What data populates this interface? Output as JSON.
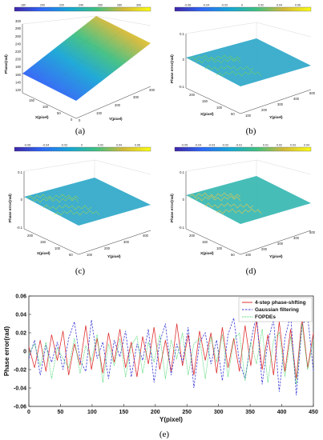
{
  "chart_data": [
    {
      "panel_label": "(a)",
      "type": "surface",
      "xlabel": "X(pixel)",
      "ylabel": "Y(pixel)",
      "zlabel": "Phase(rad)",
      "x_ticks": [
        "150",
        "100",
        "50",
        "0"
      ],
      "y_ticks": [
        "0",
        "100",
        "200",
        "300",
        "400"
      ],
      "z_ticks": [
        "120",
        "140",
        "160",
        "180",
        "200",
        "220",
        "240",
        "260",
        "280",
        "300"
      ],
      "zlim": [
        110,
        300
      ],
      "colorbar_ticks": [
        "180",
        "200",
        "220",
        "240",
        "260",
        "280",
        "300"
      ],
      "description": "smooth tilted phase plane rising from about 115 rad at Y=0 to about 300 rad at Y=400"
    },
    {
      "panel_label": "(b)",
      "type": "surface",
      "xlabel": "X(pixel)",
      "ylabel": "Y(pixel)",
      "zlabel": "Phase error(rad)",
      "x_ticks": [
        "200",
        "150",
        "100",
        "50"
      ],
      "y_ticks": [
        "100",
        "200",
        "300",
        "400",
        "500"
      ],
      "z_ticks": [
        "-0.1",
        "0",
        "0.1"
      ],
      "zlim": [
        -0.1,
        0.1
      ],
      "colorbar_ticks": [
        "-0.06",
        "-0.04",
        "-0.02",
        "0",
        "0.02",
        "0.04",
        "0.06"
      ]
    },
    {
      "panel_label": "(c)",
      "type": "surface",
      "xlabel": "X(pixel)",
      "ylabel": "Y(pixel)",
      "zlabel": "Phase error(rad)",
      "x_ticks": [
        "200",
        "150",
        "100",
        "50"
      ],
      "y_ticks": [
        "100",
        "200",
        "300",
        "400"
      ],
      "z_ticks": [
        "-0.1",
        "0",
        "0.1"
      ],
      "zlim": [
        -0.1,
        0.1
      ],
      "colorbar_ticks": [
        "-0.06",
        "-0.04",
        "-0.02",
        "0",
        "0.02",
        "0.04",
        "0.06"
      ]
    },
    {
      "panel_label": "(d)",
      "type": "surface",
      "xlabel": "X(pixel)",
      "ylabel": "Y(pixel)",
      "zlabel": "Phase error(rad)",
      "x_ticks": [
        "200",
        "150",
        "100",
        "50"
      ],
      "y_ticks": [
        "100",
        "200",
        "300",
        "400",
        "500"
      ],
      "z_ticks": [
        "-0.1",
        "0",
        "0.1"
      ],
      "zlim": [
        -0.1,
        0.1
      ],
      "colorbar_ticks": [
        "-0.05",
        "-0.04",
        "-0.03",
        "-0.02",
        "-0.01",
        "0",
        "0.01",
        "0.02",
        "0.03",
        "0.04"
      ]
    },
    {
      "panel_label": "(e)",
      "type": "line",
      "xlabel": "Y(pixel)",
      "ylabel": "Phase error(rad)",
      "xlim": [
        0,
        450
      ],
      "ylim": [
        -0.06,
        0.06
      ],
      "x_ticks": [
        "0",
        "50",
        "100",
        "150",
        "200",
        "250",
        "300",
        "350",
        "400",
        "450"
      ],
      "y_ticks": [
        "-0.06",
        "-0.04",
        "-0.02",
        "0",
        "0.02",
        "0.04",
        "0.06"
      ],
      "legend_position": "top-right",
      "x": [
        0,
        9,
        18,
        27,
        36,
        45,
        54,
        63,
        72,
        81,
        90,
        99,
        108,
        117,
        126,
        135,
        144,
        153,
        162,
        171,
        180,
        189,
        198,
        207,
        216,
        225,
        234,
        243,
        252,
        261,
        270,
        279,
        288,
        297,
        306,
        315,
        324,
        333,
        342,
        351,
        360,
        369,
        378,
        387,
        396,
        405,
        414,
        423,
        432,
        441,
        450
      ],
      "series": [
        {
          "name": "4-step phase-shfting",
          "color": "#e03030",
          "style": "solid",
          "values": [
            0.005,
            -0.018,
            0.012,
            -0.022,
            0.018,
            -0.01,
            0.022,
            -0.026,
            0.008,
            -0.015,
            0.028,
            -0.02,
            0.014,
            -0.024,
            0.02,
            -0.012,
            0.024,
            -0.018,
            0.01,
            -0.028,
            0.016,
            -0.014,
            0.026,
            -0.02,
            0.012,
            -0.022,
            0.03,
            -0.016,
            0.018,
            -0.026,
            0.022,
            -0.01,
            0.02,
            -0.024,
            0.026,
            -0.018,
            0.014,
            -0.022,
            0.028,
            -0.016,
            0.034,
            -0.02,
            0.018,
            -0.026,
            0.032,
            -0.022,
            0.024,
            -0.03,
            0.036,
            -0.018,
            0.02
          ]
        },
        {
          "name": "Gaussian filtering",
          "color": "#3a3ad8",
          "style": "dashed",
          "values": [
            -0.008,
            0.012,
            -0.026,
            0.006,
            -0.012,
            0.01,
            -0.02,
            0.014,
            0.032,
            -0.01,
            -0.022,
            0.034,
            -0.008,
            0.01,
            -0.03,
            0.012,
            -0.006,
            0.022,
            -0.028,
            0.008,
            -0.01,
            0.024,
            -0.034,
            0.01,
            0.03,
            -0.026,
            0.008,
            -0.012,
            0.026,
            -0.04,
            0.01,
            0.02,
            -0.014,
            0.012,
            -0.032,
            0.018,
            0.036,
            -0.012,
            -0.03,
            0.01,
            0.04,
            -0.036,
            0.01,
            0.034,
            -0.044,
            0.014,
            0.04,
            -0.048,
            0.028,
            0.038,
            -0.022
          ]
        },
        {
          "name": "FOPDEs",
          "color": "#2fd05a",
          "style": "dotted",
          "values": [
            -0.004,
            0.008,
            -0.016,
            0.01,
            -0.03,
            0.004,
            -0.008,
            -0.018,
            0.014,
            -0.024,
            0.006,
            -0.01,
            0.018,
            -0.034,
            0.008,
            -0.016,
            0.014,
            -0.028,
            0.006,
            0.016,
            -0.024,
            0.01,
            -0.012,
            0.018,
            -0.03,
            0.012,
            -0.008,
            0.02,
            -0.026,
            0.008,
            0.014,
            -0.03,
            0.016,
            -0.012,
            0.018,
            -0.028,
            0.012,
            0.02,
            -0.032,
            0.01,
            -0.014,
            0.024,
            -0.034,
            0.012,
            0.02,
            -0.028,
            0.016,
            -0.036,
            0.03,
            -0.02,
            0.012
          ]
        }
      ]
    }
  ]
}
